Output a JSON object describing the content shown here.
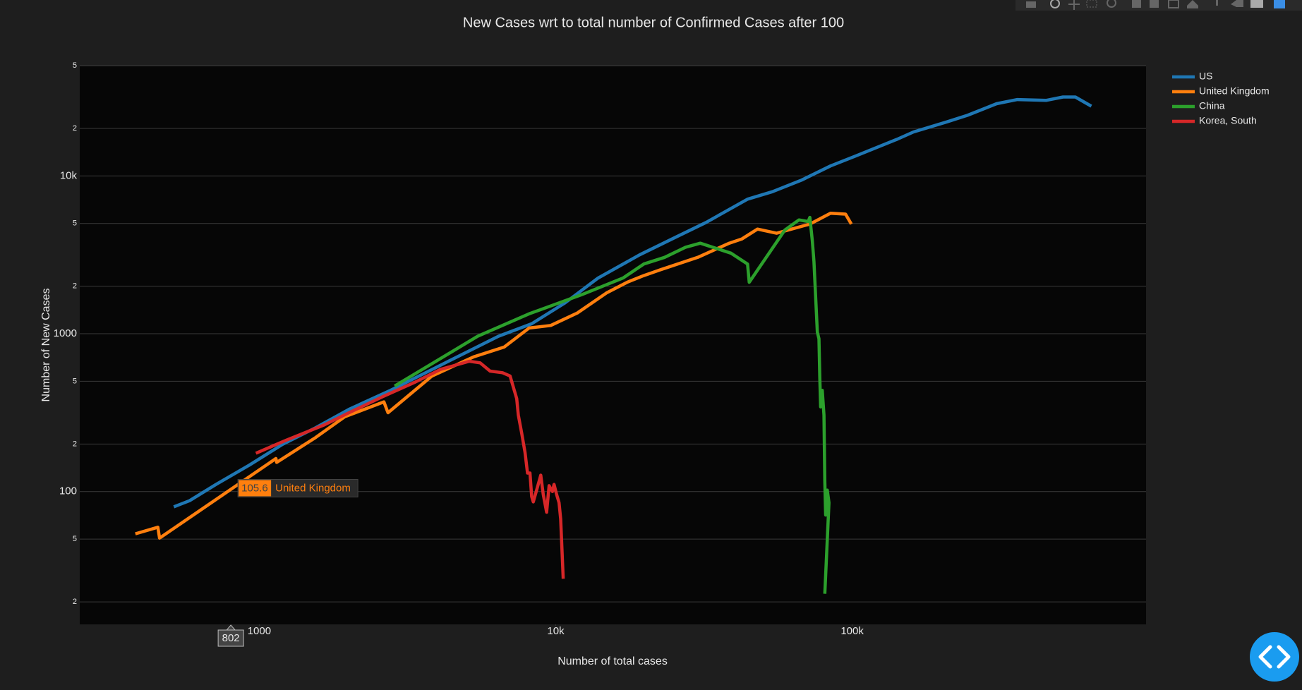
{
  "chart_data": {
    "type": "line",
    "title": "New Cases wrt to total number of Confirmed Cases after 100",
    "x_label": "Number of total cases",
    "y_label": "Number of New Cases",
    "xscale": "log",
    "yscale": "log",
    "xlim": [
      248,
      980000
    ],
    "ylim": [
      14.4,
      49500
    ],
    "xticks": [
      1000,
      {
        "value": 10000,
        "label": "10k"
      },
      {
        "value": 100000,
        "label": "100k"
      }
    ],
    "yticks": [
      {
        "value": 20,
        "label": "2"
      },
      {
        "value": 50,
        "label": "5"
      },
      100,
      {
        "value": 200,
        "label": "2"
      },
      {
        "value": 500,
        "label": "5"
      },
      1000,
      {
        "value": 2000,
        "label": "2"
      },
      {
        "value": 5000,
        "label": "5"
      },
      {
        "value": 10000,
        "label": "10k"
      },
      {
        "value": 20000,
        "label": "2"
      },
      {
        "value": 50000,
        "label": "5"
      }
    ],
    "grid": true,
    "legend": "top-right",
    "hover": {
      "x": 802,
      "y": 105.6
    },
    "series": [
      {
        "name": "US",
        "color": "#1f77b4",
        "x": [
          515,
          582,
          715,
          925,
          1198,
          1550,
          2007,
          2771,
          3825,
          4952,
          6408,
          8294,
          10735,
          13897,
          19185,
          25645,
          32137,
          44361,
          53827,
          67453,
          84540,
          102600,
          141600,
          161100,
          208400,
          245000,
          307000,
          360600,
          451900,
          514000,
          566000,
          641000
        ],
        "values": [
          80,
          87.5,
          111,
          147,
          199,
          254,
          332,
          438,
          594,
          757,
          964,
          1157,
          1566,
          2253,
          3162,
          4129,
          5073,
          7125,
          7943,
          9412,
          11570,
          13370,
          17050,
          19010,
          21990,
          24230,
          28700,
          30490,
          30130,
          31620,
          31620,
          27670
        ]
      },
      {
        "name": "United Kingdom",
        "color": "#ff7f0e",
        "x": [
          382,
          455,
          461,
          1138,
          1145,
          1550,
          1943,
          2632,
          2718,
          3825,
          5281,
          6704,
          8135,
          9621,
          11826,
          14827,
          17411,
          19816,
          22540,
          30130,
          38490,
          42410,
          47930,
          55610,
          71960,
          84540,
          94970,
          99360
        ],
        "values": [
          54,
          59.4,
          50.7,
          162,
          153,
          220,
          298,
          370,
          316,
          540,
          713,
          824,
          1088,
          1129,
          1354,
          1813,
          2120,
          2336,
          2543,
          3049,
          3748,
          3981,
          4603,
          4334,
          4954,
          5798,
          5728,
          4954
        ]
      },
      {
        "name": "China",
        "color": "#2ca02c",
        "x": [
          2862,
          5454,
          8135,
          12216,
          16865,
          19816,
          23280,
          27354,
          30720,
          38990,
          44361,
          44940,
          59320,
          66170,
          71050,
          71960,
          73370,
          74320,
          76270,
          77260,
          77760,
          78270,
          79290,
          80320,
          80840,
          81370,
          82420,
          83490,
          80840
        ],
        "values": [
          466,
          964,
          1337,
          1766,
          2253,
          2767,
          3049,
          3526,
          3748,
          3241,
          2767,
          2120,
          4550,
          5262,
          5142,
          5461,
          3882,
          2870,
          1025,
          930,
          526,
          344,
          438,
          305,
          116,
          71,
          102,
          85,
          22.5
        ]
      },
      {
        "name": "Korea, South",
        "color": "#d62728",
        "x": [
          974,
          1237,
          1654,
          2007,
          2597,
          3363,
          4079,
          5112,
          5561,
          6006,
          6617,
          7013,
          7384,
          7480,
          7677,
          7878,
          8031,
          8188,
          8294,
          8402,
          8622,
          8905,
          9078,
          9317,
          9501,
          9745,
          9872,
          10064,
          10261,
          10394,
          10597
        ],
        "values": [
          175,
          212,
          264,
          316,
          398,
          495,
          594,
          670,
          654,
          580,
          566,
          540,
          388,
          305,
          234,
          177,
          131,
          131,
          93,
          86,
          102,
          127,
          96,
          74,
          109,
          100,
          111,
          96,
          85,
          67,
          28
        ]
      }
    ]
  }
}
